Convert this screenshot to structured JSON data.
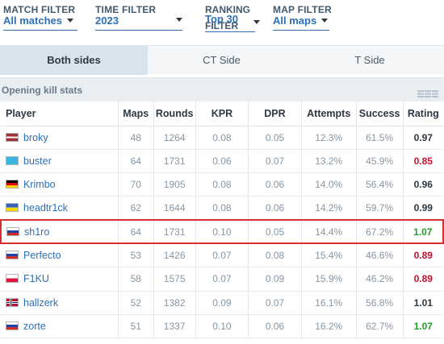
{
  "filters": {
    "match": {
      "label": "MATCH FILTER",
      "value": "All matches"
    },
    "time": {
      "label": "TIME FILTER",
      "value": "2023"
    },
    "ranking": {
      "label": "RANKING",
      "value": "Top 30",
      "label2": "FILTER"
    },
    "map": {
      "label": "MAP FILTER",
      "value": "All maps"
    }
  },
  "tabs": [
    {
      "label": "Both sides",
      "active": true
    },
    {
      "label": "CT Side",
      "active": false
    },
    {
      "label": "T Side",
      "active": false
    }
  ],
  "section": {
    "title": "Opening kill stats",
    "view_icon": "bars-icon"
  },
  "table": {
    "headers": [
      "Player",
      "Maps",
      "Rounds",
      "KPR",
      "DPR",
      "Attempts",
      "Success",
      "Rating"
    ],
    "rows": [
      {
        "player": "broky",
        "flag": "latvia",
        "maps": "48",
        "rounds": "1264",
        "kpr": "0.08",
        "dpr": "0.05",
        "attempts": "12.3%",
        "success": "61.5%",
        "rating": "0.97",
        "tier": "pos"
      },
      {
        "player": "buster",
        "flag": "kazakhstan",
        "maps": "64",
        "rounds": "1731",
        "kpr": "0.06",
        "dpr": "0.07",
        "attempts": "13.2%",
        "success": "45.9%",
        "rating": "0.85",
        "tier": "neg"
      },
      {
        "player": "Krimbo",
        "flag": "germany",
        "maps": "70",
        "rounds": "1905",
        "kpr": "0.08",
        "dpr": "0.06",
        "attempts": "14.0%",
        "success": "56.4%",
        "rating": "0.96",
        "tier": "pos"
      },
      {
        "player": "headtr1ck",
        "flag": "ukraine",
        "maps": "62",
        "rounds": "1644",
        "kpr": "0.08",
        "dpr": "0.06",
        "attempts": "14.2%",
        "success": "59.7%",
        "rating": "0.99",
        "tier": "pos"
      },
      {
        "player": "sh1ro",
        "flag": "russia",
        "maps": "64",
        "rounds": "1731",
        "kpr": "0.10",
        "dpr": "0.05",
        "attempts": "14.4%",
        "success": "67.2%",
        "rating": "1.07",
        "tier": "high",
        "highlight": true
      },
      {
        "player": "Perfecto",
        "flag": "russia",
        "maps": "53",
        "rounds": "1426",
        "kpr": "0.07",
        "dpr": "0.08",
        "attempts": "15.4%",
        "success": "46.6%",
        "rating": "0.89",
        "tier": "neg"
      },
      {
        "player": "F1KU",
        "flag": "poland",
        "maps": "58",
        "rounds": "1575",
        "kpr": "0.07",
        "dpr": "0.09",
        "attempts": "15.9%",
        "success": "46.2%",
        "rating": "0.89",
        "tier": "neg"
      },
      {
        "player": "hallzerk",
        "flag": "norway",
        "maps": "52",
        "rounds": "1382",
        "kpr": "0.09",
        "dpr": "0.07",
        "attempts": "16.1%",
        "success": "56.8%",
        "rating": "1.01",
        "tier": "pos"
      },
      {
        "player": "zorte",
        "flag": "russia",
        "maps": "51",
        "rounds": "1337",
        "kpr": "0.10",
        "dpr": "0.06",
        "attempts": "16.2%",
        "success": "62.7%",
        "rating": "1.07",
        "tier": "high"
      }
    ]
  },
  "colors": {
    "link": "#2e6fb7",
    "negative": "#c8102e",
    "positive": "#1f9d2d",
    "highlight": "#d62e2e"
  }
}
